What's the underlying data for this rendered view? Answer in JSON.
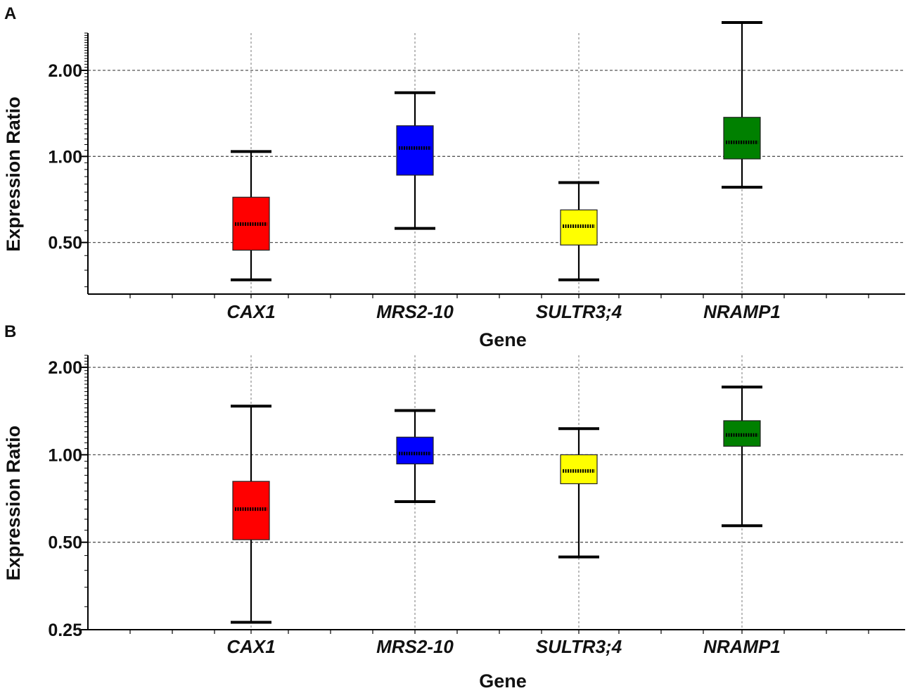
{
  "figure": {
    "panels": [
      {
        "label": "A"
      },
      {
        "label": "B"
      }
    ]
  },
  "chart_data": [
    {
      "type": "box",
      "panel": "A",
      "xlabel": "Gene",
      "ylabel": "Expression Ratio",
      "yscale": "log2",
      "ylim": [
        0.33,
        2.7
      ],
      "yticks": [
        0.5,
        1.0,
        2.0
      ],
      "ytick_labels": [
        "0.50",
        "1.00",
        "2.00"
      ],
      "grid": true,
      "categories": [
        "CAX1",
        "MRS2-10",
        "SULTR3;4",
        "NRAMP1"
      ],
      "colors": [
        "#ff0000",
        "#0000ff",
        "#ffff00",
        "#008000"
      ],
      "boxes": [
        {
          "whisker_low": 0.37,
          "q1": 0.47,
          "median": 0.58,
          "q3": 0.72,
          "whisker_high": 1.04
        },
        {
          "whisker_low": 0.56,
          "q1": 0.86,
          "median": 1.07,
          "q3": 1.28,
          "whisker_high": 1.67
        },
        {
          "whisker_low": 0.37,
          "q1": 0.49,
          "median": 0.57,
          "q3": 0.65,
          "whisker_high": 0.81
        },
        {
          "whisker_low": 0.78,
          "q1": 0.98,
          "median": 1.12,
          "q3": 1.37,
          "whisker_high": 2.94
        }
      ]
    },
    {
      "type": "box",
      "panel": "B",
      "xlabel": "Gene",
      "ylabel": "Expression Ratio",
      "yscale": "log2",
      "ylim": [
        0.25,
        2.2
      ],
      "yticks": [
        0.25,
        0.5,
        1.0,
        2.0
      ],
      "ytick_labels": [
        "0.25",
        "0.50",
        "1.00",
        "2.00"
      ],
      "grid": true,
      "categories": [
        "CAX1",
        "MRS2-10",
        "SULTR3;4",
        "NRAMP1"
      ],
      "colors": [
        "#ff0000",
        "#0000ff",
        "#ffff00",
        "#008000"
      ],
      "boxes": [
        {
          "whisker_low": 0.265,
          "q1": 0.51,
          "median": 0.65,
          "q3": 0.81,
          "whisker_high": 1.47
        },
        {
          "whisker_low": 0.69,
          "q1": 0.93,
          "median": 1.01,
          "q3": 1.15,
          "whisker_high": 1.42
        },
        {
          "whisker_low": 0.445,
          "q1": 0.795,
          "median": 0.88,
          "q3": 1.0,
          "whisker_high": 1.23
        },
        {
          "whisker_low": 0.57,
          "q1": 1.07,
          "median": 1.17,
          "q3": 1.31,
          "whisker_high": 1.71
        }
      ]
    }
  ]
}
